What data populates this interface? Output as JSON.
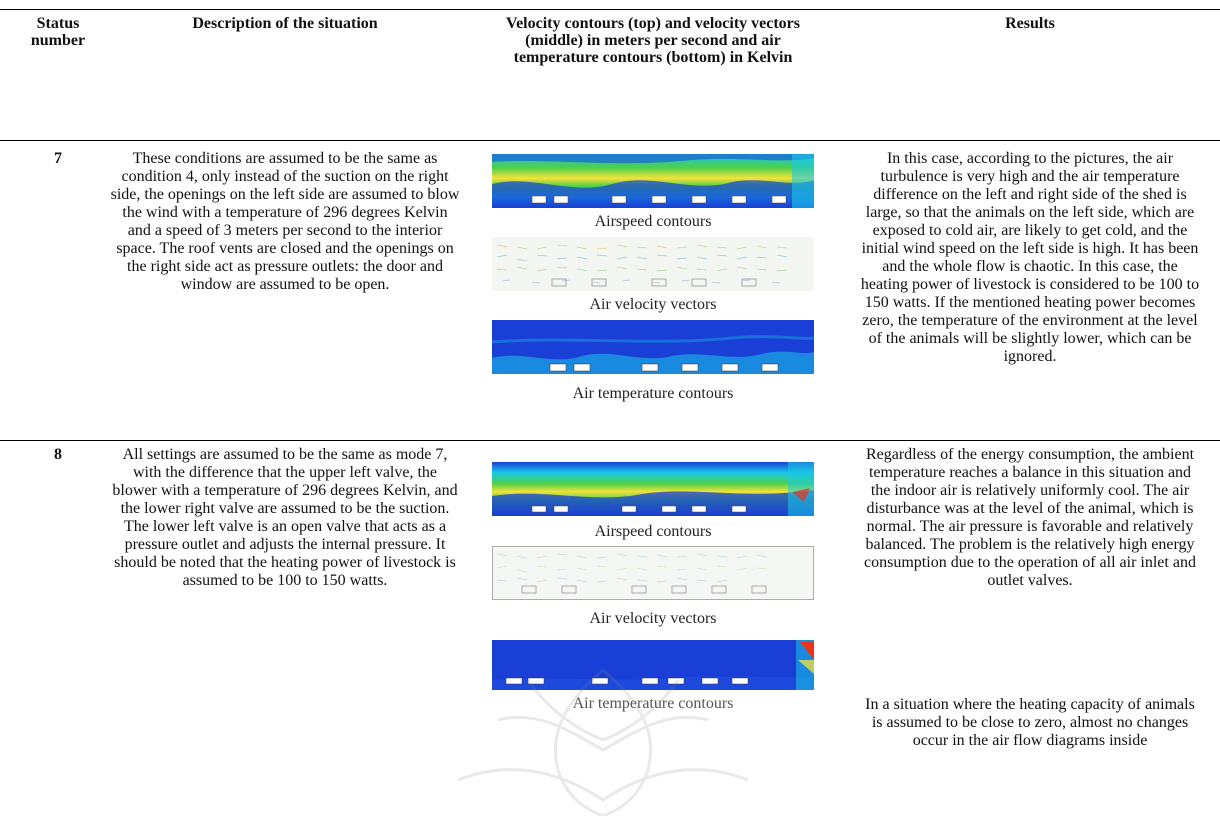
{
  "header": {
    "status_number": "Status number",
    "description": "Description of the situation",
    "contours": "Velocity contours (top) and velocity vectors (middle) in meters per second and air temperature contours (bottom) in Kelvin",
    "results": "Results"
  },
  "rows": [
    {
      "number": "7",
      "description": "These conditions are assumed to be the same as condition 4, only instead of the suction on the right side, the openings on the left side are assumed to blow the wind with a temperature of 296 degrees Kelvin and a speed of 3 meters per second to the interior space. The roof vents are closed and the openings on the right side act as pressure outlets: the door and window are assumed to be open.",
      "captions": [
        "Airspeed contours",
        "Air velocity vectors",
        "Air temperature contours"
      ],
      "results": "In this case, according to the pictures, the air turbulence is very high and the air temperature difference on the left and right side of the shed is large, so that the animals on the left side, which are exposed to cold air, are likely to get cold, and the initial wind speed on the left side is high. It has been and the whole flow is chaotic. In this case, the heating power of livestock is considered to be 100 to 150 watts. If the mentioned heating power becomes zero, the temperature of the environment at the level of the animals will be slightly lower, which can be ignored."
    },
    {
      "number": "8",
      "description": "All settings are assumed to be the same as mode 7, with the difference that the upper left valve, the blower with a temperature of 296 degrees Kelvin, and the lower right valve are assumed to be the suction. The lower left valve is an open valve that acts as a pressure outlet and adjusts the internal pressure. It should be noted that the heating power of livestock is assumed to be 100 to 150 watts.",
      "captions": [
        "Airspeed contours",
        "Air velocity vectors",
        "Air temperature contours"
      ],
      "results": "Regardless of the energy consumption, the ambient temperature reaches a balance in this situation and the indoor air is relatively uniformly cool. The air disturbance was at the level of the animal, which is normal. The air pressure is favorable and relatively balanced. The problem is the relatively high energy consumption due to the operation of all air inlet and outlet valves.",
      "results_extra": "In a situation where the heating capacity of animals is assumed to be close to zero, almost no changes occur in the air flow diagrams inside"
    }
  ],
  "colors": {
    "cfd_blue": "#1a3fd6",
    "cfd_cyan": "#19c8e8",
    "cfd_green": "#4cd04a",
    "cfd_yellow": "#f4e23a",
    "cfd_red": "#e8361c"
  }
}
